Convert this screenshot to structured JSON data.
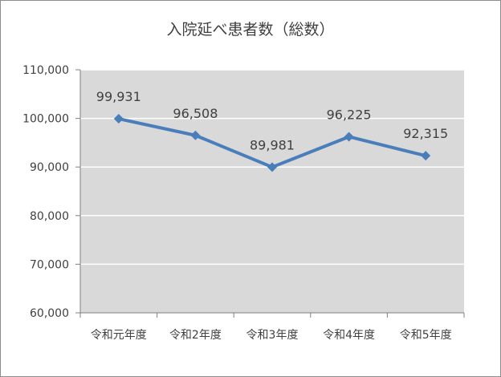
{
  "chart_data": {
    "type": "line",
    "title": "入院延べ患者数（総数）",
    "categories": [
      "令和元年度",
      "令和2年度",
      "令和3年度",
      "令和4年度",
      "令和5年度"
    ],
    "values": [
      99931,
      96508,
      89981,
      96225,
      92315
    ],
    "data_labels": [
      "99,931",
      "96,508",
      "89,981",
      "96,225",
      "92,315"
    ],
    "ylim": [
      60000,
      110000
    ],
    "yticks": [
      60000,
      70000,
      80000,
      90000,
      100000,
      110000
    ],
    "ytick_labels": [
      "60,000",
      "70,000",
      "80,000",
      "90,000",
      "100,000",
      "110,000"
    ],
    "xlabel": "",
    "ylabel": "",
    "grid": true,
    "legend": "none",
    "colors": {
      "line": "#4a7ebb",
      "marker": "#4a7ebb",
      "plot_background": "#d9d9d9",
      "gridline": "#ffffff",
      "axis": "#808080"
    }
  }
}
